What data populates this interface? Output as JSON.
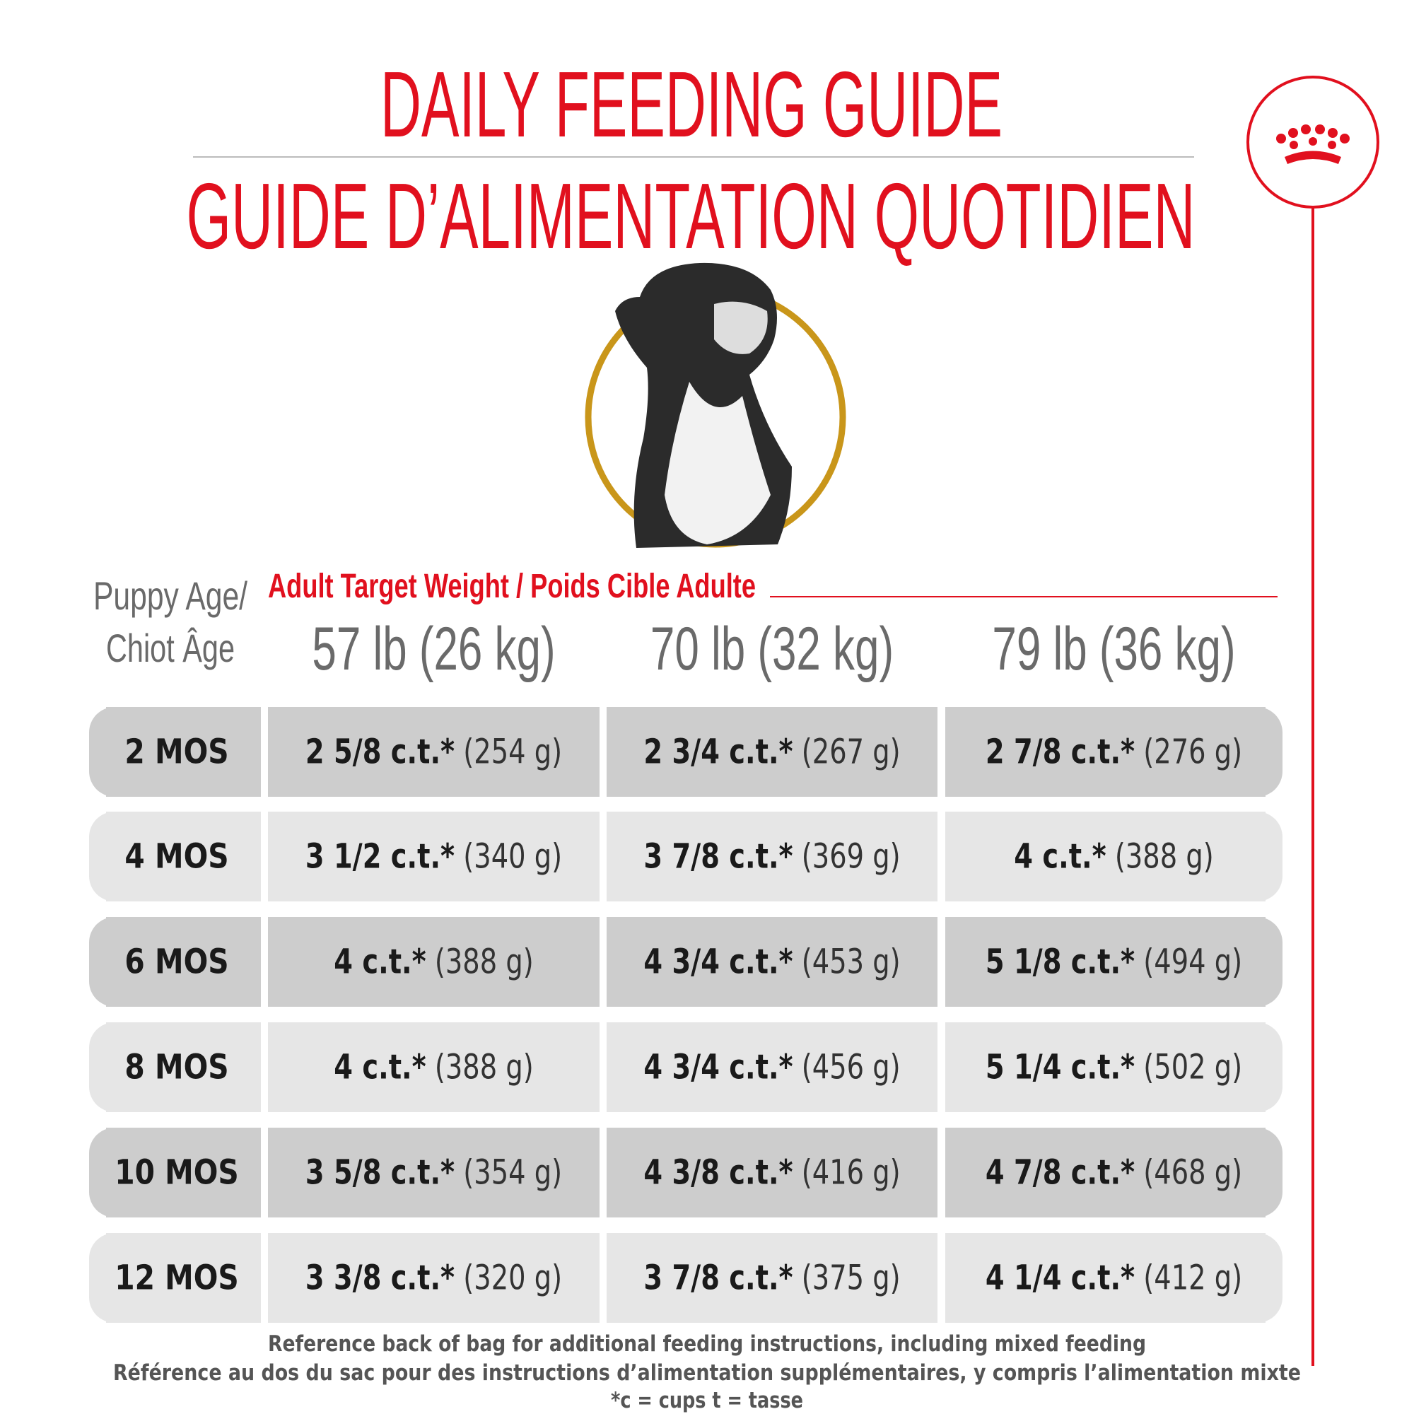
{
  "header": {
    "title": "DAILY FEEDING GUIDE",
    "subtitle": "GUIDE D’ALIMENTATION QUOTIDIEN"
  },
  "table": {
    "age_header": [
      "Puppy Age/",
      "Chiot Âge"
    ],
    "weight_header": "Adult Target Weight / Poids Cible Adulte",
    "columns": [
      "57 lb (26 kg)",
      "70 lb (32 kg)",
      "79 lb (36 kg)"
    ],
    "rows": [
      {
        "age": "2 MOS",
        "cells": [
          {
            "amount": "2 5/8 c.t.*",
            "grams": "(254 g)"
          },
          {
            "amount": "2 3/4 c.t.*",
            "grams": "(267 g)"
          },
          {
            "amount": "2 7/8 c.t.*",
            "grams": "(276 g)"
          }
        ]
      },
      {
        "age": "4 MOS",
        "cells": [
          {
            "amount": "3 1/2 c.t.*",
            "grams": "(340 g)"
          },
          {
            "amount": "3 7/8 c.t.*",
            "grams": "(369 g)"
          },
          {
            "amount": "4 c.t.*",
            "grams": "(388 g)"
          }
        ]
      },
      {
        "age": "6 MOS",
        "cells": [
          {
            "amount": "4 c.t.*",
            "grams": "(388 g)"
          },
          {
            "amount": "4 3/4 c.t.*",
            "grams": "(453 g)"
          },
          {
            "amount": "5 1/8 c.t.*",
            "grams": "(494 g)"
          }
        ]
      },
      {
        "age": "8 MOS",
        "cells": [
          {
            "amount": "4 c.t.*",
            "grams": "(388 g)"
          },
          {
            "amount": "4 3/4 c.t.*",
            "grams": "(456 g)"
          },
          {
            "amount": "5 1/4 c.t.*",
            "grams": "(502 g)"
          }
        ]
      },
      {
        "age": "10 MOS",
        "cells": [
          {
            "amount": "3 5/8 c.t.*",
            "grams": "(354 g)"
          },
          {
            "amount": "4 3/8 c.t.*",
            "grams": "(416 g)"
          },
          {
            "amount": "4 7/8 c.t.*",
            "grams": "(468 g)"
          }
        ]
      },
      {
        "age": "12 MOS",
        "cells": [
          {
            "amount": "3 3/8 c.t.*",
            "grams": "(320 g)"
          },
          {
            "amount": "3 7/8 c.t.*",
            "grams": "(375 g)"
          },
          {
            "amount": "4 1/4 c.t.*",
            "grams": "(412 g)"
          }
        ]
      }
    ]
  },
  "footer": [
    "Reference back of bag for additional feeding instructions, including mixed feeding",
    "Référence au dos du sac pour des instructions d’alimentation supplémentaires, y compris l’alimentation mixte",
    "*c = cups t = tasse"
  ]
}
